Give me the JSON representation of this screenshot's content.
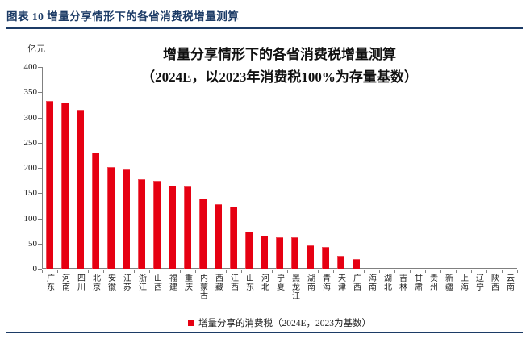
{
  "header": {
    "caption": "图表 10  增量分享情形下的各省消费税增量测算"
  },
  "colors": {
    "navy": "#1C3B66",
    "bar_red": "#E60012",
    "axis_gray": "#808080"
  },
  "chart_data": {
    "type": "bar",
    "title_line1": "增量分享情形下的各省消费税增量测算",
    "title_line2": "（2024E，以2023年消费税100%为存量基数）",
    "unit_label": "亿元",
    "legend": "增量分享的消费税（2024E，2023为基数）",
    "legend_position": "bottom-center",
    "grid": false,
    "bar_color": "#E60012",
    "ylim": [
      0,
      400
    ],
    "ytick_step": 50,
    "ytick_labels": [
      "0",
      "50",
      "100",
      "150",
      "200",
      "250",
      "300",
      "350",
      "400"
    ],
    "categories": [
      "广东",
      "河南",
      "四川",
      "北京",
      "安徽",
      "江苏",
      "浙江",
      "山西",
      "福建",
      "重庆",
      "内蒙古",
      "西藏",
      "江西",
      "山东",
      "河北",
      "宁夏",
      "黑龙江",
      "湖南",
      "青海",
      "天津",
      "广西",
      "海南",
      "湖北",
      "吉林",
      "甘肃",
      "贵州",
      "新疆",
      "上海",
      "辽宁",
      "陕西",
      "云南"
    ],
    "values": [
      333,
      330,
      316,
      231,
      201,
      199,
      178,
      175,
      165,
      163,
      139,
      128,
      124,
      73,
      66,
      63,
      62,
      46,
      44,
      26,
      20,
      0,
      0,
      0,
      0,
      0,
      0,
      0,
      0,
      0,
      0
    ]
  }
}
